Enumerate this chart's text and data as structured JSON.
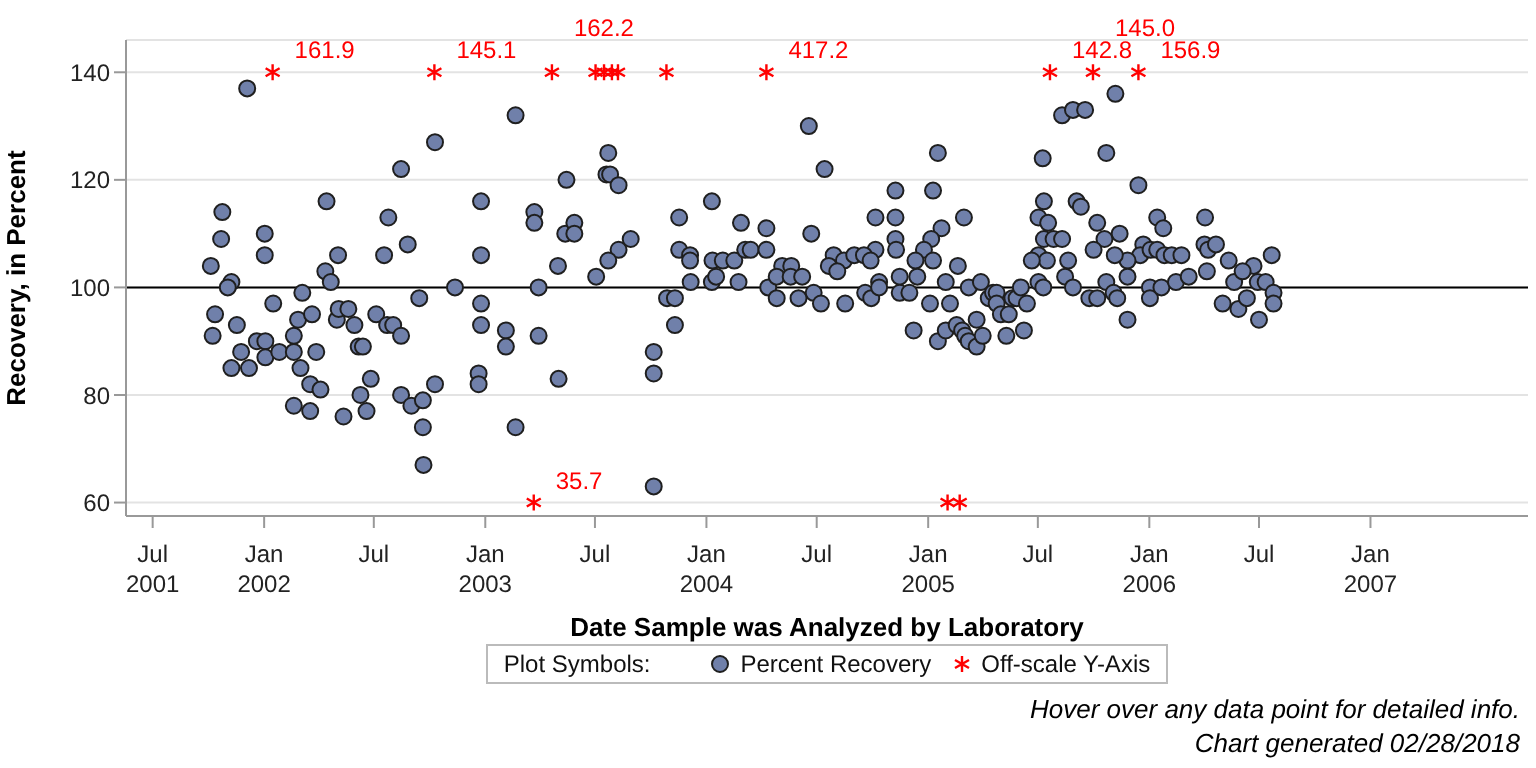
{
  "chart_data": {
    "type": "scatter",
    "xlabel": "Date Sample was Analyzed by Laboratory",
    "ylabel": "Recovery, in Percent",
    "legend_title": "Plot Symbols:",
    "legend": "bottom",
    "grid": "y",
    "xlim": [
      "2001-05-18",
      "2007-09-18"
    ],
    "ylim": [
      57.5,
      146
    ],
    "yticks": [
      60,
      80,
      100,
      120,
      140
    ],
    "xticks": [
      {
        "value": "2001-07-01",
        "label": "Jul\n2001"
      },
      {
        "value": "2002-01-01",
        "label": "Jan\n2002"
      },
      {
        "value": "2002-07-01",
        "label": "Jul"
      },
      {
        "value": "2003-01-01",
        "label": "Jan\n2003"
      },
      {
        "value": "2003-07-01",
        "label": "Jul"
      },
      {
        "value": "2004-01-01",
        "label": "Jan\n2004"
      },
      {
        "value": "2004-07-01",
        "label": "Jul"
      },
      {
        "value": "2005-01-01",
        "label": "Jan\n2005"
      },
      {
        "value": "2005-07-01",
        "label": "Jul"
      },
      {
        "value": "2006-01-01",
        "label": "Jan\n2006"
      },
      {
        "value": "2006-07-01",
        "label": "Jul"
      },
      {
        "value": "2007-01-01",
        "label": "Jan\n2007"
      }
    ],
    "ref_lines": [
      {
        "axis": "y",
        "value": 100,
        "color": "#000000"
      }
    ],
    "annotations": [
      {
        "text": "161.9",
        "x": "2002-01-15",
        "y": 140
      },
      {
        "text": "145.1",
        "x": "2002-10-09",
        "y": 140
      },
      {
        "text": "35.7",
        "x": "2003-03-22",
        "y": 60
      },
      {
        "text": "162.2",
        "x": "2003-04-21",
        "y": 140
      },
      {
        "text": "417.2",
        "x": "2004-04-09",
        "y": 140
      },
      {
        "text": "142.8",
        "x": "2005-07-21",
        "y": 140
      },
      {
        "text": "145.0",
        "x": "2005-09-30",
        "y": 140
      },
      {
        "text": "156.9",
        "x": "2005-12-14",
        "y": 140
      },
      "Hover over any data point for detailed info.",
      "Chart generated 02/28/2018"
    ],
    "series": [
      {
        "name": "Percent Recovery",
        "color": "#7080aa",
        "marker": "circle",
        "x": [
          "2001-12-04",
          "2001-10-24",
          "2001-10-22",
          "2001-10-05",
          "2001-11-08",
          "2002-01-02",
          "2002-01-02",
          "2002-04-14",
          "2002-04-12",
          "2002-05-03",
          "2002-04-21",
          "2002-07-25",
          "2002-07-18",
          "2002-08-15",
          "2002-08-26",
          "2002-10-10",
          "2002-12-25",
          "2002-12-25",
          "2003-02-20",
          "2003-03-23",
          "2003-03-23",
          "2003-05-01",
          "2003-05-15",
          "2003-05-13",
          "2003-05-28",
          "2003-05-28",
          "2003-07-23",
          "2003-07-20",
          "2003-07-26",
          "2003-08-09",
          "2003-08-09",
          "2003-07-23",
          "2003-08-29",
          "2003-07-03",
          "2003-11-17",
          "2003-11-17",
          "2003-12-05",
          "2003-12-05",
          "2004-01-10",
          "2004-01-11",
          "2004-01-28",
          "2004-02-16",
          "2004-02-27",
          "2004-03-05",
          "2004-03-14",
          "2004-04-09",
          "2004-04-09",
          "2004-05-05",
          "2004-05-20",
          "2001-11-02",
          "2001-10-12",
          "2001-10-08",
          "2001-11-17",
          "2001-11-24",
          "2001-11-08",
          "2001-12-07",
          "2001-12-20",
          "2002-01-03",
          "2002-01-03",
          "2002-01-16",
          "2002-01-26",
          "2002-02-19",
          "2002-02-19",
          "2002-02-26",
          "2002-03-05",
          "2002-03-02",
          "2002-03-18",
          "2002-03-21",
          "2002-03-28",
          "2002-04-04",
          "2002-02-19",
          "2002-03-18",
          "2002-05-01",
          "2002-05-04",
          "2002-05-20",
          "2002-05-30",
          "2002-05-12",
          "2002-06-06",
          "2002-06-13",
          "2002-06-26",
          "2002-06-09",
          "2002-06-19",
          "2002-07-05",
          "2002-07-23",
          "2002-08-02",
          "2002-08-15",
          "2002-08-15",
          "2002-09-01",
          "2002-09-14",
          "2002-09-20",
          "2002-10-10",
          "2002-09-20",
          "2002-09-21",
          "2002-11-12",
          "2002-12-25",
          "2002-12-25",
          "2002-12-21",
          "2002-12-21",
          "2003-02-04",
          "2003-02-04",
          "2003-02-20",
          "2003-03-30",
          "2003-03-30",
          "2003-05-02",
          "2003-10-06",
          "2003-10-06",
          "2003-10-06",
          "2003-10-28",
          "2003-11-10",
          "2003-11-10",
          "2003-12-06",
          "2004-01-10",
          "2004-01-17",
          "2004-02-23",
          "2004-04-12",
          "2004-04-26",
          "2004-04-26",
          "2004-06-01",
          "2004-06-18",
          "2004-07-14",
          "2005-01-17",
          "2005-01-09",
          "2004-11-08",
          "2004-10-06",
          "2004-11-08",
          "2005-03-01",
          "2005-01-23",
          "2004-06-22",
          "2004-11-08",
          "2004-11-09",
          "2004-10-06",
          "2005-01-06",
          "2004-12-25",
          "2004-07-29",
          "2004-08-15",
          "2004-09-01",
          "2004-09-17",
          "2004-09-28",
          "2004-12-11",
          "2005-01-09",
          "2005-02-19",
          "2005-07-09",
          "2005-08-10",
          "2005-08-28",
          "2005-09-17",
          "2005-11-06",
          "2005-10-22",
          "2005-12-14",
          "2005-09-03",
          "2005-09-10",
          "2005-07-11",
          "2005-07-02",
          "2005-07-18",
          "2005-10-07",
          "2006-01-14",
          "2006-01-24",
          "2006-04-03",
          "2005-11-13",
          "2005-10-19",
          "2005-07-11",
          "2005-07-27",
          "2005-08-10",
          "2005-10-01",
          "2005-12-22",
          "2005-12-17",
          "2006-01-03",
          "2006-01-14",
          "2006-01-26",
          "2006-02-07",
          "2006-02-23",
          "2006-04-02",
          "2006-04-08",
          "2006-04-21",
          "2006-05-12",
          "2006-06-22",
          "2006-07-22",
          "2005-11-26",
          "2005-11-05",
          "2005-08-20",
          "2005-07-02",
          "2005-07-16",
          "2005-06-21",
          "2004-05-19",
          "2004-06-07",
          "2004-06-26",
          "2004-07-08",
          "2004-07-21",
          "2004-08-04",
          "2004-08-17",
          "2004-09-19",
          "2004-09-29",
          "2004-10-12",
          "2004-10-12",
          "2004-11-15",
          "2004-11-15",
          "2004-12-01",
          "2004-12-08",
          "2004-12-14",
          "2005-01-04",
          "2005-01-17",
          "2005-01-30",
          "2005-01-30",
          "2005-02-06",
          "2005-02-17",
          "2005-02-26",
          "2005-03-03",
          "2005-03-09",
          "2005-03-22",
          "2005-03-22",
          "2005-04-01",
          "2005-03-09",
          "2005-03-29",
          "2005-04-11",
          "2005-04-18",
          "2005-04-24",
          "2005-04-24",
          "2005-05-01",
          "2005-05-14",
          "2005-05-10",
          "2005-05-20",
          "2005-05-27",
          "2005-06-03",
          "2005-06-08",
          "2005-06-13",
          "2005-07-02",
          "2005-07-10",
          "2005-08-15",
          "2005-08-28",
          "2005-09-24",
          "2005-10-07",
          "2005-10-22",
          "2005-11-03",
          "2005-11-09",
          "2005-11-26",
          "2005-11-26",
          "2006-01-02",
          "2006-01-02",
          "2006-01-21",
          "2006-02-14",
          "2006-03-07",
          "2006-04-06",
          "2006-05-02",
          "2006-05-21",
          "2006-05-28",
          "2006-06-11",
          "2006-07-01",
          "2006-06-29",
          "2006-07-12",
          "2006-07-25",
          "2006-07-25",
          "2006-06-04"
        ],
        "values": [
          137,
          114,
          109,
          104,
          101,
          110,
          106,
          116,
          103,
          106,
          101,
          113,
          106,
          122,
          108,
          127,
          116,
          106,
          132,
          114,
          112,
          104,
          120,
          110,
          112,
          110,
          125,
          121,
          121,
          119,
          107,
          105,
          109,
          102,
          113,
          107,
          106,
          105,
          116,
          105,
          105,
          105,
          112,
          107,
          107,
          111,
          107,
          104,
          104,
          100,
          95,
          91,
          93,
          88,
          85,
          85,
          90,
          90,
          87,
          97,
          88,
          91,
          88,
          94,
          99,
          85,
          82,
          95,
          88,
          81,
          78,
          77,
          94,
          96,
          96,
          93,
          76,
          89,
          89,
          83,
          80,
          77,
          95,
          93,
          93,
          91,
          80,
          78,
          98,
          79,
          82,
          74,
          67,
          100,
          97,
          93,
          84,
          82,
          92,
          89,
          74,
          100,
          91,
          83,
          88,
          84,
          63,
          98,
          98,
          93,
          101,
          101,
          102,
          101,
          100,
          102,
          98,
          98,
          130,
          122,
          125,
          118,
          118,
          113,
          113,
          113,
          111,
          110,
          109,
          107,
          107,
          109,
          107,
          106,
          105,
          106,
          106,
          105,
          105,
          105,
          104,
          124,
          132,
          133,
          133,
          136,
          125,
          119,
          116,
          115,
          116,
          113,
          112,
          112,
          113,
          111,
          113,
          110,
          109,
          109,
          109,
          109,
          107,
          108,
          106,
          107,
          107,
          106,
          106,
          106,
          108,
          107,
          108,
          105,
          104,
          106,
          105,
          106,
          105,
          106,
          105,
          105,
          102,
          102,
          99,
          97,
          104,
          103,
          97,
          99,
          98,
          101,
          100,
          102,
          99,
          99,
          92,
          102,
          97,
          90,
          92,
          101,
          97,
          93,
          92,
          91,
          90,
          89,
          94,
          91,
          100,
          101,
          98,
          99,
          99,
          97,
          95,
          95,
          91,
          98,
          98,
          100,
          92,
          97,
          101,
          100,
          102,
          100,
          98,
          98,
          101,
          99,
          98,
          94,
          102,
          100,
          98,
          100,
          101,
          102,
          103,
          97,
          101,
          96,
          98,
          94,
          101,
          101,
          99,
          97,
          103
        ]
      },
      {
        "name": "Off-scale Y-Axis",
        "color": "#ff0000",
        "marker": "cross",
        "x": [
          "2002-01-15",
          "2002-10-09",
          "2003-03-22",
          "2003-04-21",
          "2003-07-02",
          "2003-07-16",
          "2003-07-29",
          "2003-08-08",
          "2003-10-27",
          "2004-04-09",
          "2005-02-02",
          "2005-02-22",
          "2005-07-21",
          "2005-09-30",
          "2005-12-14"
        ],
        "values": [
          140,
          140,
          60,
          140,
          140,
          140,
          140,
          140,
          140,
          140,
          60,
          60,
          140,
          140,
          140
        ]
      }
    ]
  }
}
